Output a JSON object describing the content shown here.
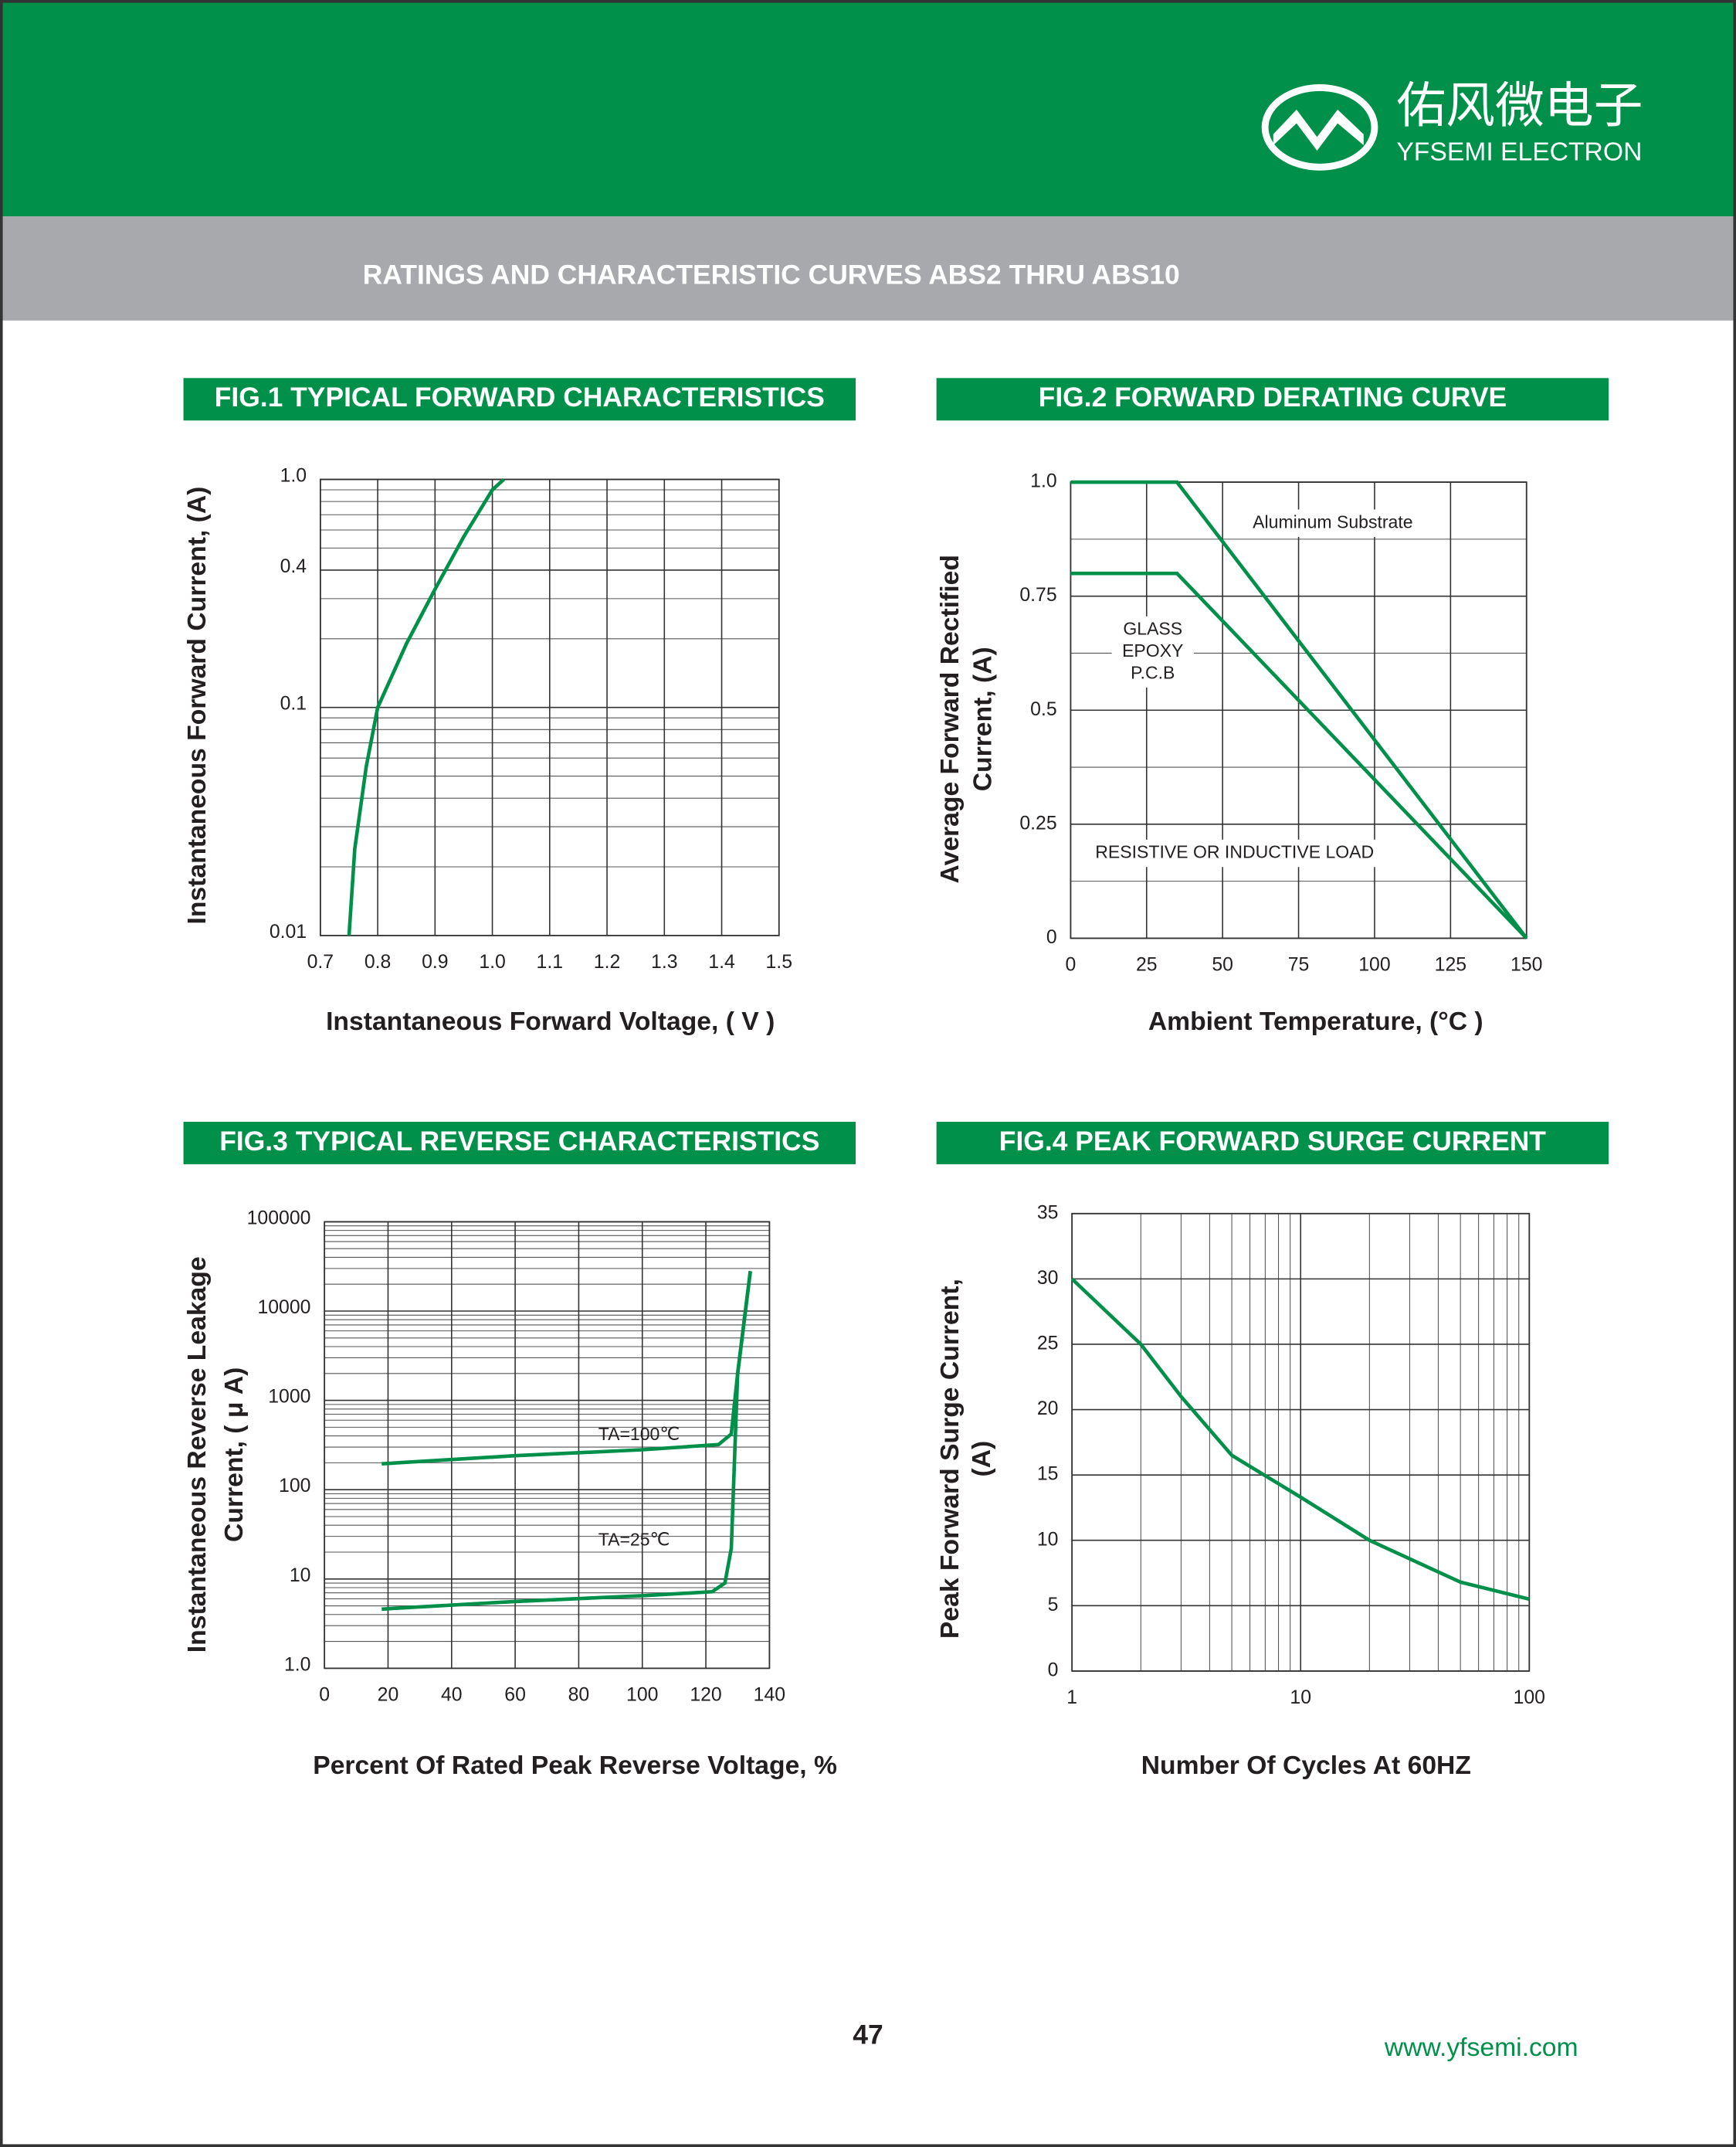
{
  "header": {
    "brand_cn": "佑风微电子",
    "brand_en": "YFSEMI ELECTRON",
    "title": "RATINGS AND CHARACTERISTIC CURVES ABS2 THRU ABS10"
  },
  "footer": {
    "page": "47",
    "website": "www.yfsemi.com"
  },
  "chart_data": [
    {
      "type": "line",
      "title": "FIG.1 TYPICAL FORWARD CHARACTERISTICS",
      "x_label": "Instantaneous Forward Voltage, ( V )",
      "y_label": [
        "Instantaneous Forward Current, (A)"
      ],
      "log_y": true,
      "grid": true,
      "minor_grid": "y",
      "xlim": [
        0.7,
        1.5
      ],
      "xticks": [
        0.7,
        0.8,
        0.9,
        {
          "value": 1,
          "label": "1.0"
        },
        1.1,
        1.2,
        1.3,
        1.4,
        1.5
      ],
      "ylim": [
        0.01,
        1
      ],
      "yticks": [
        0.01,
        0.1,
        0.4,
        {
          "value": 1,
          "label": "1.0"
        }
      ],
      "series": [
        {
          "color": "#00904a",
          "x": [
            0.75,
            0.76,
            0.78,
            0.8,
            0.85,
            0.9,
            0.95,
            1.0,
            1.02
          ],
          "values": [
            0.01,
            0.024,
            0.055,
            0.1,
            0.19,
            0.33,
            0.56,
            0.9,
            1.0
          ]
        }
      ]
    },
    {
      "type": "line",
      "title": "FIG.2 FORWARD DERATING CURVE",
      "x_label": "Ambient  Temperature, (°C )",
      "y_label": [
        "Average Forward Rectified",
        "Current, (A)"
      ],
      "grid": true,
      "minor_grid": "y",
      "xlim": [
        0,
        150
      ],
      "xticks": [
        0,
        25,
        50,
        75,
        100,
        125,
        150
      ],
      "ylim": [
        0,
        1
      ],
      "yticks": [
        0,
        0.25,
        0.5,
        0.75,
        {
          "value": 1,
          "label": "1.0"
        }
      ],
      "annotations": [
        "RESISTIVE OR INDUCTIVE LOAD"
      ],
      "series": [
        {
          "name": "Aluminum Substrate",
          "color": "#00904a",
          "x": [
            0,
            35,
            150
          ],
          "values": [
            1,
            1,
            0
          ]
        },
        {
          "name": "GLASS\nEPOXY\nP.C.B",
          "color": "#00904a",
          "x": [
            0,
            35,
            150
          ],
          "values": [
            0.8,
            0.8,
            0
          ]
        }
      ]
    },
    {
      "type": "line",
      "title": "FIG.3 TYPICAL REVERSE CHARACTERISTICS",
      "x_label": "Percent Of Rated Peak Reverse Voltage, %",
      "y_label": [
        "Instantaneous Reverse  Leakage",
        "Current, ( μ A)"
      ],
      "log_y": true,
      "grid": true,
      "minor_grid": "y",
      "xlim": [
        0,
        140
      ],
      "xticks": [
        0,
        20,
        40,
        60,
        80,
        100,
        120,
        140
      ],
      "ylim": [
        1,
        100000
      ],
      "yticks": [
        {
          "value": 1,
          "label": "1.0"
        },
        10,
        100,
        1000,
        10000,
        100000
      ],
      "series": [
        {
          "name": "TA=100℃",
          "color": "#00904a",
          "x": [
            18,
            60,
            100,
            124,
            128,
            130,
            134
          ],
          "values": [
            195,
            240,
            280,
            320,
            420,
            2000,
            28000
          ]
        },
        {
          "name": "TA=25℃",
          "color": "#00904a",
          "x": [
            18,
            60,
            100,
            122,
            126,
            128,
            130,
            134
          ],
          "values": [
            4.6,
            5.6,
            6.5,
            7.2,
            9,
            22,
            2000,
            28000
          ]
        }
      ]
    },
    {
      "type": "line",
      "title": "FIG.4 PEAK FORWARD SURGE CURRENT",
      "x_label": "Number Of Cycles At 60HZ",
      "y_label": [
        "Peak Forward  Surge  Current,",
        "(A)"
      ],
      "log_x": true,
      "grid": true,
      "minor_grid": "x",
      "xlim": [
        1,
        100
      ],
      "xticks": [
        1,
        10,
        100
      ],
      "ylim": [
        0,
        35
      ],
      "yticks": [
        0,
        5,
        10,
        15,
        20,
        25,
        30,
        35
      ],
      "series": [
        {
          "color": "#00904a",
          "x": [
            1,
            2,
            3,
            5,
            10,
            20,
            50,
            100
          ],
          "values": [
            30,
            25,
            21,
            16.5,
            13.3,
            10,
            6.8,
            5.5
          ]
        }
      ]
    }
  ]
}
